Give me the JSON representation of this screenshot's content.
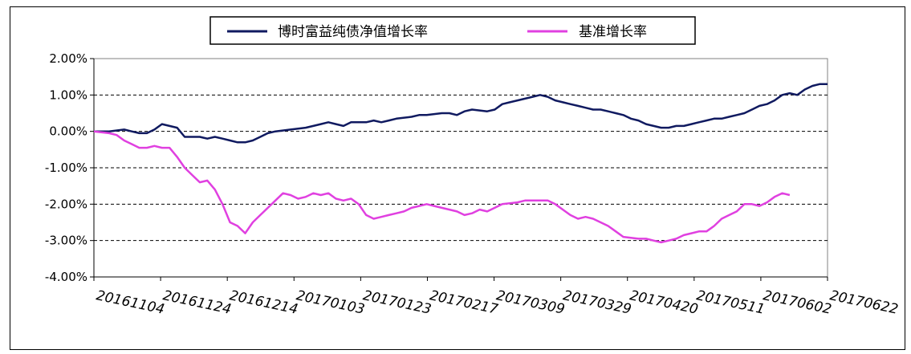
{
  "chart_data": {
    "type": "line",
    "title": "",
    "xlabel": "",
    "ylabel": "",
    "ylim": [
      -4.0,
      2.0
    ],
    "y_ticks": [
      "2.00%",
      "1.00%",
      "0.00%",
      "-1.00%",
      "-2.00%",
      "-3.00%",
      "-4.00%"
    ],
    "y_tick_values": [
      2,
      1,
      0,
      -1,
      -2,
      -3,
      -4
    ],
    "x_ticks": [
      "20161104",
      "20161124",
      "20161214",
      "20170103",
      "20170123",
      "20170217",
      "20170309",
      "20170329",
      "20170420",
      "20170511",
      "20170602",
      "20170622"
    ],
    "grid": "horizontal-dashed",
    "legend_position": "top",
    "series": [
      {
        "name": "博时富益纯债净值增长率",
        "color": "#101a60",
        "values": [
          [
            0,
            0
          ],
          [
            4,
            0
          ],
          [
            8,
            0.05
          ],
          [
            10,
            0
          ],
          [
            12,
            -0.05
          ],
          [
            14,
            -0.05
          ],
          [
            16,
            0.05
          ],
          [
            18,
            0.2
          ],
          [
            20,
            0.15
          ],
          [
            22,
            0.1
          ],
          [
            24,
            -0.15
          ],
          [
            28,
            -0.15
          ],
          [
            30,
            -0.2
          ],
          [
            32,
            -0.15
          ],
          [
            34,
            -0.2
          ],
          [
            36,
            -0.25
          ],
          [
            38,
            -0.3
          ],
          [
            40,
            -0.3
          ],
          [
            42,
            -0.25
          ],
          [
            44,
            -0.15
          ],
          [
            46,
            -0.05
          ],
          [
            48,
            0
          ],
          [
            52,
            0.05
          ],
          [
            56,
            0.1
          ],
          [
            58,
            0.15
          ],
          [
            60,
            0.2
          ],
          [
            62,
            0.25
          ],
          [
            64,
            0.2
          ],
          [
            66,
            0.15
          ],
          [
            68,
            0.25
          ],
          [
            72,
            0.25
          ],
          [
            74,
            0.3
          ],
          [
            76,
            0.25
          ],
          [
            78,
            0.3
          ],
          [
            80,
            0.35
          ],
          [
            84,
            0.4
          ],
          [
            86,
            0.45
          ],
          [
            88,
            0.45
          ],
          [
            92,
            0.5
          ],
          [
            94,
            0.5
          ],
          [
            96,
            0.45
          ],
          [
            98,
            0.55
          ],
          [
            100,
            0.6
          ],
          [
            104,
            0.55
          ],
          [
            106,
            0.6
          ],
          [
            108,
            0.75
          ],
          [
            110,
            0.8
          ],
          [
            112,
            0.85
          ],
          [
            114,
            0.9
          ],
          [
            116,
            0.95
          ],
          [
            118,
            1.0
          ],
          [
            120,
            0.95
          ],
          [
            122,
            0.85
          ],
          [
            124,
            0.8
          ],
          [
            126,
            0.75
          ],
          [
            128,
            0.7
          ],
          [
            130,
            0.65
          ],
          [
            132,
            0.6
          ],
          [
            134,
            0.6
          ],
          [
            136,
            0.55
          ],
          [
            138,
            0.5
          ],
          [
            140,
            0.45
          ],
          [
            142,
            0.35
          ],
          [
            144,
            0.3
          ],
          [
            146,
            0.2
          ],
          [
            148,
            0.15
          ],
          [
            150,
            0.1
          ],
          [
            152,
            0.1
          ],
          [
            154,
            0.15
          ],
          [
            156,
            0.15
          ],
          [
            158,
            0.2
          ],
          [
            160,
            0.25
          ],
          [
            162,
            0.3
          ],
          [
            164,
            0.35
          ],
          [
            166,
            0.35
          ],
          [
            168,
            0.4
          ],
          [
            170,
            0.45
          ],
          [
            172,
            0.5
          ],
          [
            174,
            0.6
          ],
          [
            176,
            0.7
          ],
          [
            178,
            0.75
          ],
          [
            180,
            0.85
          ],
          [
            182,
            1.0
          ],
          [
            184,
            1.05
          ],
          [
            186,
            1.0
          ],
          [
            188,
            1.15
          ],
          [
            190,
            1.25
          ],
          [
            192,
            1.3
          ],
          [
            194,
            1.3
          ]
        ]
      },
      {
        "name": "基准增长率",
        "color": "#e040e0",
        "values": [
          [
            0,
            0
          ],
          [
            4,
            -0.05
          ],
          [
            6,
            -0.1
          ],
          [
            8,
            -0.25
          ],
          [
            10,
            -0.35
          ],
          [
            12,
            -0.45
          ],
          [
            14,
            -0.45
          ],
          [
            16,
            -0.4
          ],
          [
            18,
            -0.45
          ],
          [
            20,
            -0.45
          ],
          [
            22,
            -0.7
          ],
          [
            24,
            -1.0
          ],
          [
            26,
            -1.2
          ],
          [
            28,
            -1.4
          ],
          [
            30,
            -1.35
          ],
          [
            32,
            -1.6
          ],
          [
            34,
            -2.0
          ],
          [
            36,
            -2.5
          ],
          [
            38,
            -2.6
          ],
          [
            40,
            -2.8
          ],
          [
            42,
            -2.5
          ],
          [
            44,
            -2.3
          ],
          [
            46,
            -2.1
          ],
          [
            48,
            -1.9
          ],
          [
            50,
            -1.7
          ],
          [
            52,
            -1.75
          ],
          [
            54,
            -1.85
          ],
          [
            56,
            -1.8
          ],
          [
            58,
            -1.7
          ],
          [
            60,
            -1.75
          ],
          [
            62,
            -1.7
          ],
          [
            64,
            -1.85
          ],
          [
            66,
            -1.9
          ],
          [
            68,
            -1.85
          ],
          [
            70,
            -2.0
          ],
          [
            72,
            -2.3
          ],
          [
            74,
            -2.4
          ],
          [
            76,
            -2.35
          ],
          [
            78,
            -2.3
          ],
          [
            80,
            -2.25
          ],
          [
            82,
            -2.2
          ],
          [
            84,
            -2.1
          ],
          [
            86,
            -2.05
          ],
          [
            88,
            -2.0
          ],
          [
            90,
            -2.05
          ],
          [
            92,
            -2.1
          ],
          [
            94,
            -2.15
          ],
          [
            96,
            -2.2
          ],
          [
            98,
            -2.3
          ],
          [
            100,
            -2.25
          ],
          [
            102,
            -2.15
          ],
          [
            104,
            -2.2
          ],
          [
            106,
            -2.1
          ],
          [
            108,
            -2.0
          ],
          [
            112,
            -1.95
          ],
          [
            114,
            -1.9
          ],
          [
            120,
            -1.9
          ],
          [
            122,
            -2.0
          ],
          [
            124,
            -2.15
          ],
          [
            126,
            -2.3
          ],
          [
            128,
            -2.4
          ],
          [
            130,
            -2.35
          ],
          [
            132,
            -2.4
          ],
          [
            134,
            -2.5
          ],
          [
            136,
            -2.6
          ],
          [
            138,
            -2.75
          ],
          [
            140,
            -2.9
          ],
          [
            144,
            -2.95
          ],
          [
            146,
            -2.95
          ],
          [
            148,
            -3.0
          ],
          [
            150,
            -3.05
          ],
          [
            152,
            -3.0
          ],
          [
            154,
            -2.95
          ],
          [
            156,
            -2.85
          ],
          [
            158,
            -2.8
          ],
          [
            160,
            -2.75
          ],
          [
            162,
            -2.75
          ],
          [
            164,
            -2.6
          ],
          [
            166,
            -2.4
          ],
          [
            168,
            -2.3
          ],
          [
            170,
            -2.2
          ],
          [
            172,
            -2.0
          ],
          [
            174,
            -2.0
          ],
          [
            176,
            -2.05
          ],
          [
            178,
            -1.95
          ],
          [
            180,
            -1.8
          ],
          [
            182,
            -1.7
          ],
          [
            184,
            -1.75
          ]
        ]
      }
    ]
  }
}
